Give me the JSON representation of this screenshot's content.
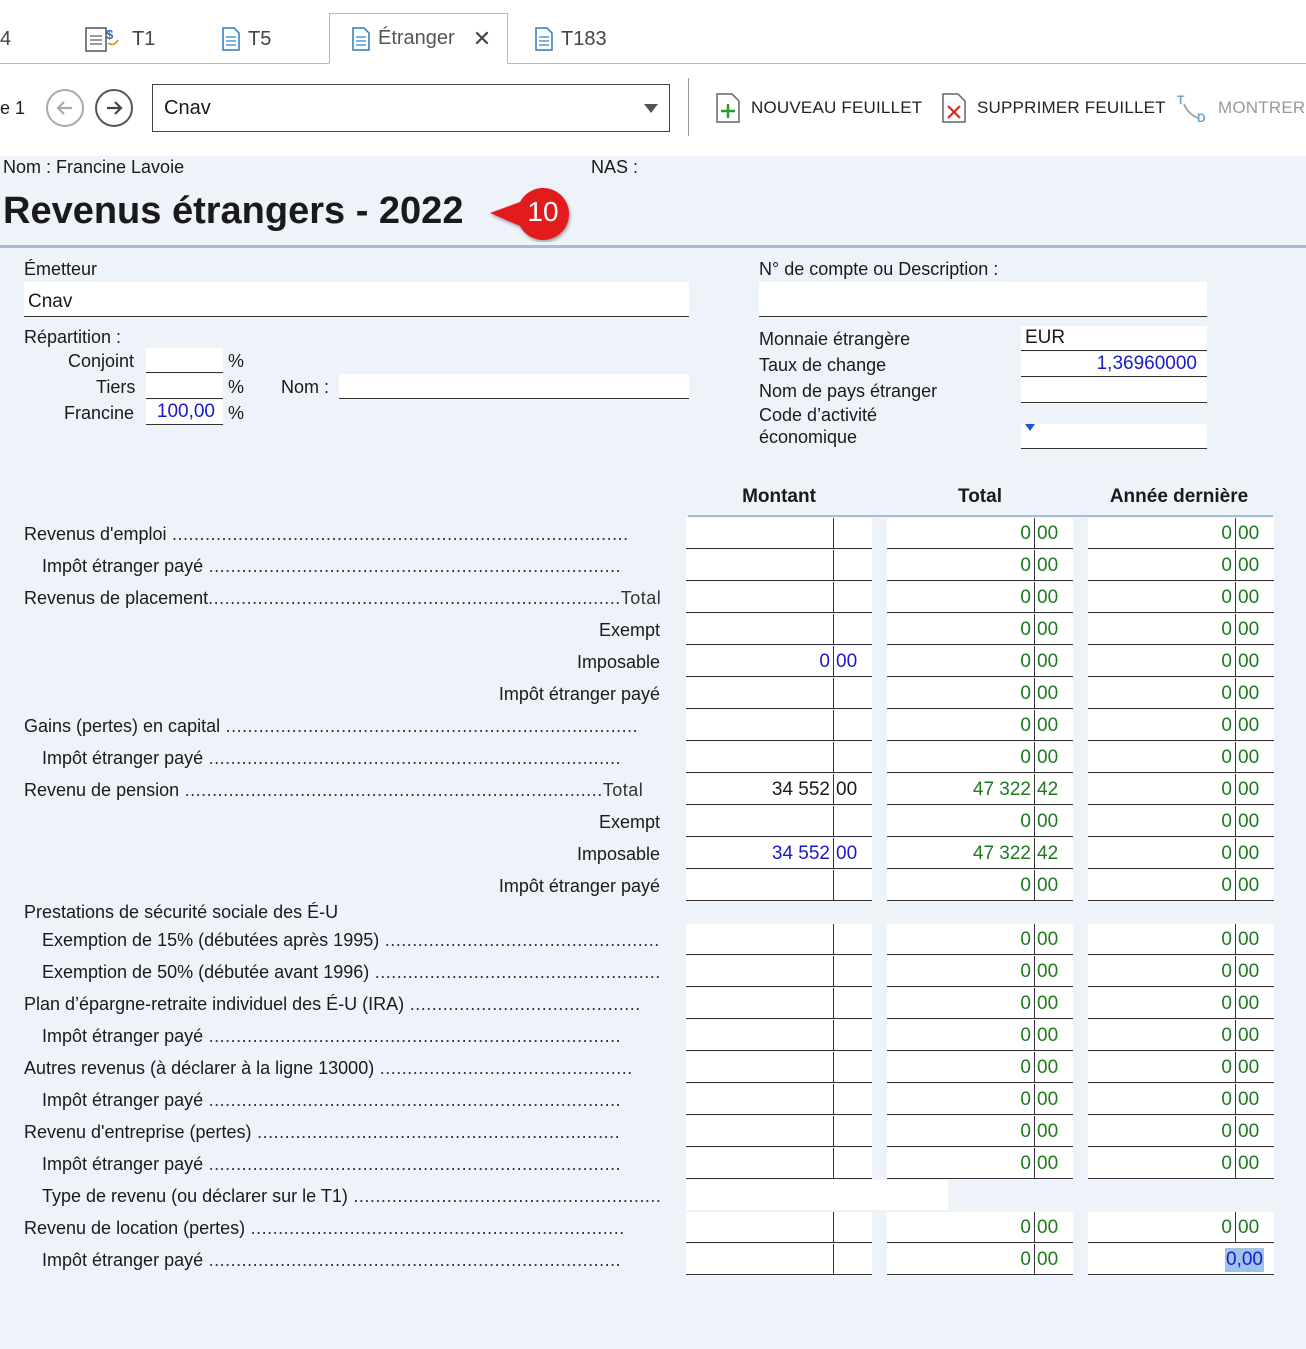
{
  "tabs": [
    {
      "label": "4"
    },
    {
      "label": "T1"
    },
    {
      "label": "T5"
    },
    {
      "label": "Étranger"
    },
    {
      "label": "T183"
    }
  ],
  "toolbar": {
    "page_label": "e 1",
    "issuer_selected": "Cnav",
    "new_sheet": "NOUVEAU FEUILLET",
    "delete_sheet": "SUPPRIMER FEUILLET",
    "show": "MONTRER"
  },
  "header": {
    "name": "Nom : Francine Lavoie",
    "nas": "NAS :",
    "title": "Revenus étrangers - 2022",
    "badge": "10"
  },
  "issuer": {
    "label": "Émetteur",
    "value": "Cnav",
    "account_label": "N° de compte ou Description :",
    "account_value": ""
  },
  "split": {
    "label": "Répartition :",
    "spouse_label": "Conjoint",
    "spouse_value": "",
    "third_label": "Tiers",
    "third_value": "",
    "self_label": "Francine",
    "self_value": "100,00",
    "pct": "%",
    "name_label": "Nom :",
    "name_value": ""
  },
  "currency": {
    "foreign_label": "Monnaie étrangère",
    "foreign_value": "EUR",
    "rate_label": "Taux de change",
    "rate_value": "1,36960000",
    "country_label": "Nom de pays étranger",
    "country_value": "",
    "activity_label_1": "Code d’activité",
    "activity_label_2": "économique",
    "activity_value": ""
  },
  "columns": {
    "amount": "Montant",
    "total": "Total",
    "last_year": "Année dernière"
  },
  "rows": [
    {
      "label": "Revenus d'emploi",
      "dots": " ...................................................................................",
      "a": [
        "",
        ""
      ],
      "t": [
        "0",
        "00"
      ],
      "l": [
        "0",
        "00"
      ]
    },
    {
      "label": "Impôt étranger payé",
      "dots": " ...........................................................................",
      "a": [
        "",
        ""
      ],
      "t": [
        "0",
        "00"
      ],
      "l": [
        "0",
        "00"
      ]
    },
    {
      "label": "Revenus de placement",
      "dots": "...........................................................................Total",
      "a": [
        "",
        ""
      ],
      "t": [
        "0",
        "00"
      ],
      "l": [
        "0",
        "00"
      ]
    },
    {
      "label": "Exempt",
      "dots": "",
      "a": [
        "",
        ""
      ],
      "t": [
        "0",
        "00"
      ],
      "l": [
        "0",
        "00"
      ]
    },
    {
      "label": "Imposable",
      "dots": "",
      "a": [
        "0",
        "00"
      ],
      "t": [
        "0",
        "00"
      ],
      "l": [
        "0",
        "00"
      ]
    },
    {
      "label": "Impôt étranger payé",
      "dots": "",
      "a": [
        "",
        ""
      ],
      "t": [
        "0",
        "00"
      ],
      "l": [
        "0",
        "00"
      ]
    },
    {
      "label": "Gains (pertes) en capital",
      "dots": " ...........................................................................",
      "a": [
        "",
        ""
      ],
      "t": [
        "0",
        "00"
      ],
      "l": [
        "0",
        "00"
      ]
    },
    {
      "label": "Impôt étranger payé",
      "dots": " ...........................................................................",
      "a": [
        "",
        ""
      ],
      "t": [
        "0",
        "00"
      ],
      "l": [
        "0",
        "00"
      ]
    },
    {
      "label": "Revenu de pension",
      "dots": " ............................................................................Total",
      "a": [
        "34 552",
        "00"
      ],
      "t": [
        "47 322",
        "42"
      ],
      "l": [
        "0",
        "00"
      ]
    },
    {
      "label": "Exempt",
      "dots": "",
      "a": [
        "",
        ""
      ],
      "t": [
        "0",
        "00"
      ],
      "l": [
        "0",
        "00"
      ]
    },
    {
      "label": "Imposable",
      "dots": "",
      "a": [
        "34 552",
        "00"
      ],
      "t": [
        "47 322",
        "42"
      ],
      "l": [
        "0",
        "00"
      ]
    },
    {
      "label": "Impôt étranger payé",
      "dots": "",
      "a": [
        "",
        ""
      ],
      "t": [
        "0",
        "00"
      ],
      "l": [
        "0",
        "00"
      ]
    },
    {
      "label": "Prestations de sécurité sociale des É-U",
      "dots": ""
    },
    {
      "label": "Exemption de 15% (débutées après 1995)",
      "dots": " ......................................................",
      "a": [
        "",
        ""
      ],
      "t": [
        "0",
        "00"
      ],
      "l": [
        "0",
        "00"
      ]
    },
    {
      "label": "Exemption de 50% (débutée avant 1996)",
      "dots": " .......................................................",
      "a": [
        "",
        ""
      ],
      "t": [
        "0",
        "00"
      ],
      "l": [
        "0",
        "00"
      ]
    },
    {
      "label": "Plan d’épargne-retraite individuel des É-U (IRA)",
      "dots": " ..........................................",
      "a": [
        "",
        ""
      ],
      "t": [
        "0",
        "00"
      ],
      "l": [
        "0",
        "00"
      ]
    },
    {
      "label": "Impôt étranger payé",
      "dots": " ...........................................................................",
      "a": [
        "",
        ""
      ],
      "t": [
        "0",
        "00"
      ],
      "l": [
        "0",
        "00"
      ]
    },
    {
      "label": "Autres revenus (à déclarer à la ligne 13000)",
      "dots": " ..............................................",
      "a": [
        "",
        ""
      ],
      "t": [
        "0",
        "00"
      ],
      "l": [
        "0",
        "00"
      ]
    },
    {
      "label": "Impôt étranger payé",
      "dots": " ...........................................................................",
      "a": [
        "",
        ""
      ],
      "t": [
        "0",
        "00"
      ],
      "l": [
        "0",
        "00"
      ]
    },
    {
      "label": "Revenu d'entreprise (pertes)",
      "dots": " ..................................................................",
      "a": [
        "",
        ""
      ],
      "t": [
        "0",
        "00"
      ],
      "l": [
        "0",
        "00"
      ]
    },
    {
      "label": "Impôt étranger payé",
      "dots": " ...........................................................................",
      "a": [
        "",
        ""
      ],
      "t": [
        "0",
        "00"
      ],
      "l": [
        "0",
        "00"
      ]
    },
    {
      "label": "Type de revenu (ou déclarer sur le T1)",
      "dots": " ...........................................................",
      "type": ""
    },
    {
      "label": "Revenu de location (pertes)",
      "dots": " ....................................................................",
      "a": [
        "",
        ""
      ],
      "t": [
        "0",
        "00"
      ],
      "l": [
        "0",
        "00"
      ]
    },
    {
      "label": "Impôt étranger payé",
      "dots": " ...........................................................................",
      "a": [
        "",
        ""
      ],
      "t": [
        "0",
        "00"
      ],
      "l": [
        "0",
        "00"
      ],
      "l_selected": "0,00"
    }
  ],
  "colors": {
    "accent_blue": "#1a1acc",
    "calc_green": "#1f7a1f",
    "badge_red": "#e21f1f",
    "selection": "#9fc3e8"
  }
}
